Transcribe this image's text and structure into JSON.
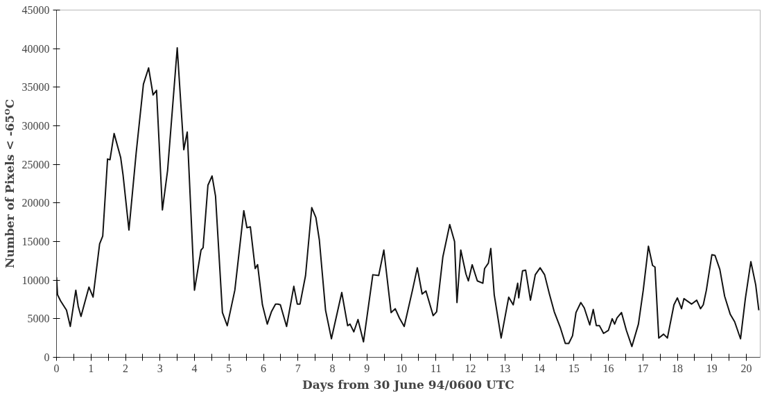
{
  "chart_data": {
    "type": "line",
    "xlabel": "Days from 30 June 94/0600 UTC",
    "ylabel": "Number of Pixels < -65ᴼC",
    "xlim": [
      0,
      20.4
    ],
    "xticks": [
      0,
      {
        "value": 0.5,
        "label": null
      },
      1,
      {
        "value": 1.5,
        "label": null
      },
      2,
      {
        "value": 2.5,
        "label": null
      },
      3,
      {
        "value": 3.5,
        "label": null
      },
      4,
      {
        "value": 4.5,
        "label": null
      },
      5,
      {
        "value": 5.5,
        "label": null
      },
      6,
      {
        "value": 6.5,
        "label": null
      },
      7,
      {
        "value": 7.5,
        "label": null
      },
      8,
      {
        "value": 8.5,
        "label": null
      },
      9,
      {
        "value": 9.5,
        "label": null
      },
      10,
      {
        "value": 10.5,
        "label": null
      },
      11,
      {
        "value": 11.5,
        "label": null
      },
      12,
      {
        "value": 12.5,
        "label": null
      },
      13,
      {
        "value": 13.5,
        "label": null
      },
      14,
      {
        "value": 14.5,
        "label": null
      },
      15,
      {
        "value": 15.5,
        "label": null
      },
      16,
      {
        "value": 16.5,
        "label": null
      },
      17,
      {
        "value": 17.5,
        "label": null
      },
      18,
      {
        "value": 18.5,
        "label": null
      },
      19,
      {
        "value": 19.5,
        "label": null
      },
      20
    ],
    "ylim": [
      0,
      45000
    ],
    "yticks": [
      0,
      5000,
      10000,
      15000,
      20000,
      25000,
      30000,
      35000,
      40000,
      45000
    ],
    "grid": false,
    "marker": "none",
    "line_style": "solid",
    "series": [
      {
        "color": "#111111",
        "x": [
          0,
          0.03,
          0.12,
          0.29,
          0.4,
          0.56,
          0.63,
          0.71,
          0.94,
          1.06,
          1.25,
          1.34,
          1.48,
          1.55,
          1.67,
          1.86,
          1.93,
          2.1,
          2.31,
          2.52,
          2.67,
          2.8,
          2.9,
          3.07,
          3.22,
          3.5,
          3.69,
          3.79,
          4.0,
          4.19,
          4.25,
          4.39,
          4.51,
          4.61,
          4.81,
          4.95,
          5.17,
          5.43,
          5.52,
          5.62,
          5.76,
          5.83,
          5.97,
          6.11,
          6.23,
          6.35,
          6.42,
          6.49,
          6.67,
          6.88,
          6.98,
          7.06,
          7.22,
          7.4,
          7.52,
          7.62,
          7.8,
          7.97,
          8.27,
          8.44,
          8.51,
          8.62,
          8.74,
          8.9,
          9.17,
          9.34,
          9.49,
          9.7,
          9.82,
          9.94,
          10.08,
          10.32,
          10.46,
          10.6,
          10.71,
          10.92,
          11.02,
          11.2,
          11.4,
          11.54,
          11.61,
          11.72,
          11.87,
          11.94,
          12.05,
          12.2,
          12.36,
          12.41,
          12.52,
          12.59,
          12.69,
          12.89,
          13.11,
          13.24,
          13.37,
          13.4,
          13.51,
          13.6,
          13.74,
          13.88,
          14.02,
          14.15,
          14.29,
          14.43,
          14.61,
          14.75,
          14.85,
          14.96,
          15.06,
          15.2,
          15.3,
          15.46,
          15.56,
          15.65,
          15.74,
          15.86,
          16.0,
          16.11,
          16.18,
          16.25,
          16.38,
          16.52,
          16.68,
          16.87,
          17.01,
          17.16,
          17.28,
          17.35,
          17.46,
          17.6,
          17.71,
          17.9,
          18.0,
          18.12,
          18.19,
          18.41,
          18.56,
          18.67,
          18.75,
          18.84,
          19.0,
          19.09,
          19.23,
          19.37,
          19.53,
          19.66,
          19.83,
          19.97,
          20.13,
          20.27,
          20.36
        ],
        "values": [
          10400,
          8100,
          7300,
          6100,
          4000,
          8700,
          6600,
          5300,
          9100,
          7800,
          14700,
          15700,
          25700,
          25600,
          29000,
          25900,
          23600,
          16500,
          26500,
          35400,
          37500,
          34000,
          34600,
          19100,
          24200,
          40100,
          26900,
          29200,
          8700,
          13900,
          14200,
          22300,
          23500,
          20900,
          5800,
          4100,
          8700,
          19000,
          16800,
          16900,
          11500,
          12000,
          6800,
          4300,
          5900,
          6900,
          6900,
          6800,
          4000,
          9200,
          6900,
          6900,
          10600,
          19400,
          18100,
          15200,
          6100,
          2400,
          8400,
          4100,
          4300,
          3300,
          4900,
          2000,
          10700,
          10600,
          13900,
          5800,
          6300,
          5100,
          4000,
          8700,
          11600,
          8200,
          8600,
          5400,
          5900,
          13000,
          17200,
          15000,
          7100,
          13900,
          10800,
          9900,
          12000,
          9900,
          9600,
          11500,
          12200,
          14100,
          8100,
          2500,
          7800,
          6800,
          9600,
          7700,
          11200,
          11300,
          7400,
          10700,
          11600,
          10700,
          8200,
          5900,
          3800,
          1800,
          1800,
          2800,
          5800,
          7100,
          6400,
          4200,
          6200,
          4100,
          4100,
          3100,
          3500,
          5000,
          4300,
          5100,
          5800,
          3500,
          1400,
          4300,
          8700,
          14400,
          11900,
          11700,
          2500,
          3000,
          2500,
          6800,
          7700,
          6300,
          7600,
          6900,
          7400,
          6300,
          6800,
          8700,
          13300,
          13200,
          11400,
          7900,
          5600,
          4600,
          2400,
          7600,
          12400,
          9400,
          6100
        ]
      }
    ]
  }
}
